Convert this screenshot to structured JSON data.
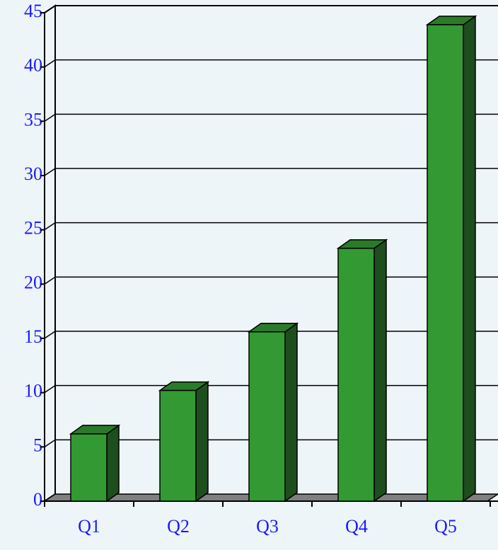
{
  "chart_data": {
    "type": "bar3d",
    "categories": [
      "Q1",
      "Q2",
      "Q3",
      "Q4",
      "Q5"
    ],
    "values": [
      6.2,
      10.2,
      15.6,
      23.3,
      43.9
    ],
    "color": "#339933",
    "ylim": [
      0,
      45
    ],
    "yticks": [
      0,
      5,
      10,
      15,
      20,
      25,
      30,
      35,
      40,
      45
    ],
    "grid": true
  }
}
